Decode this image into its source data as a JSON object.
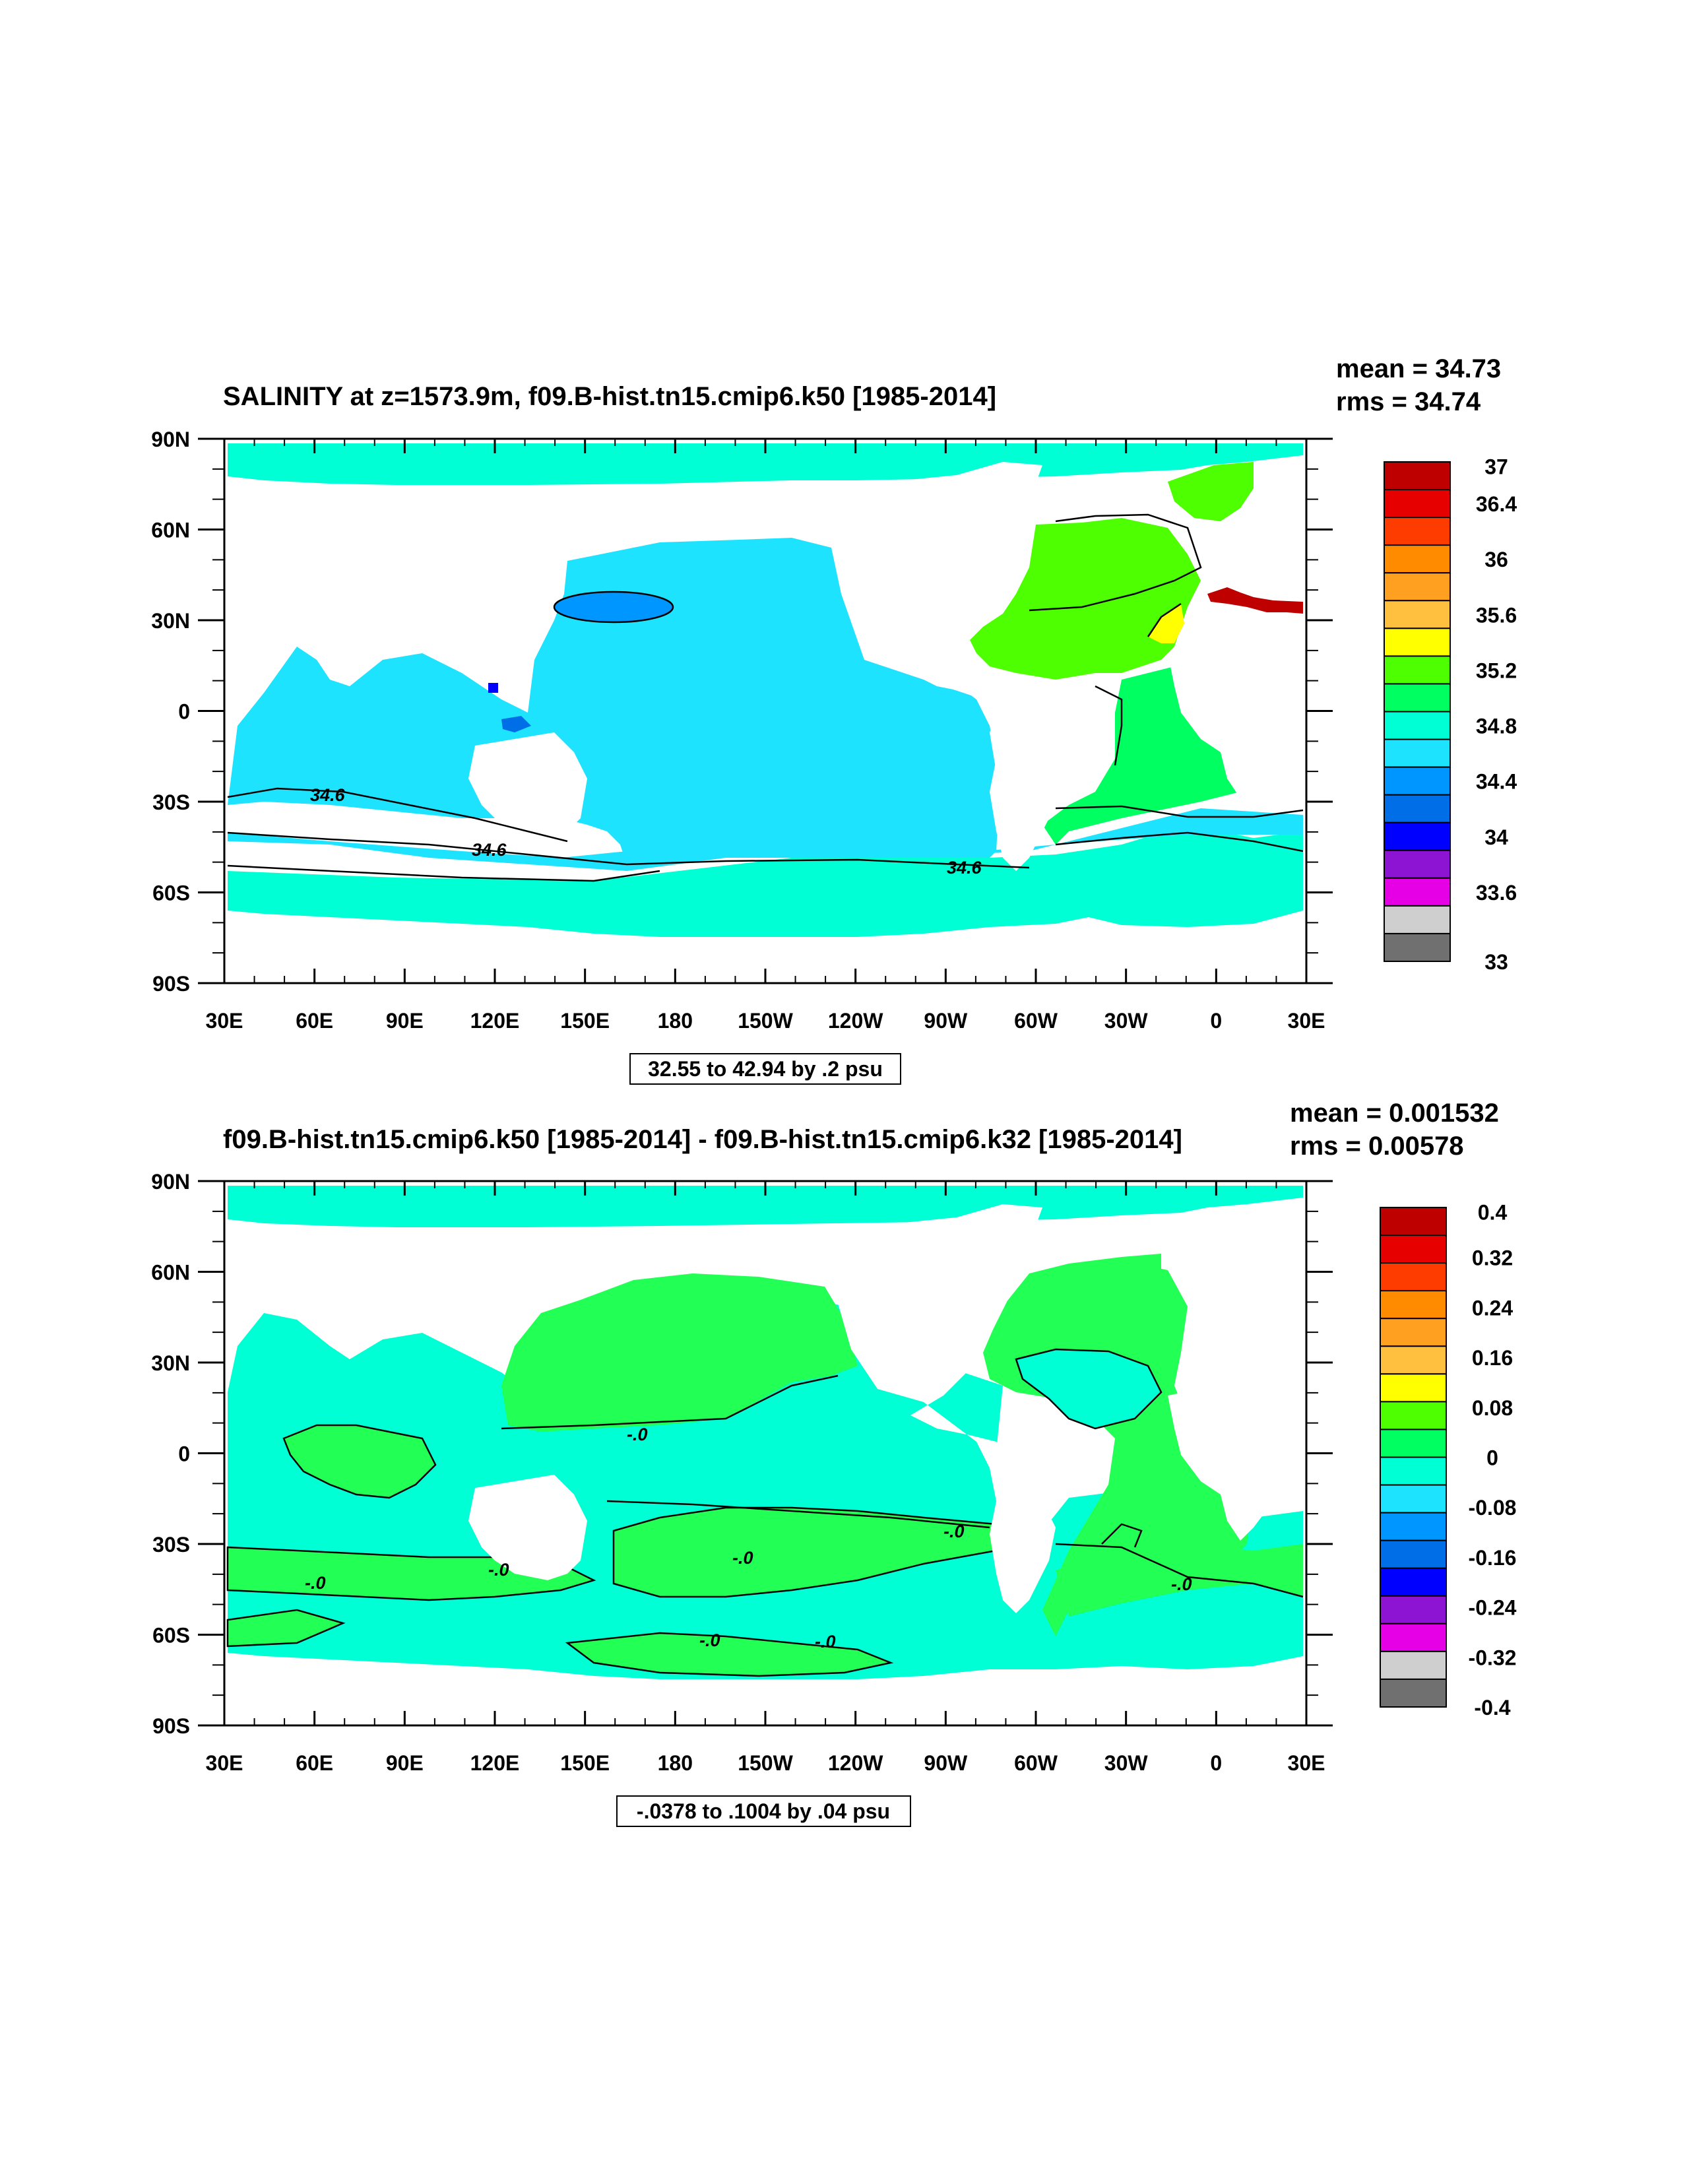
{
  "colors": {
    "ocean_primary_top": "#1ee3ff",
    "ocean_south_top": "#00ffd4",
    "ocean_arctic": "#00ffd4",
    "atlantic_top": "#4dff00",
    "med_top": "#bf0000",
    "ocean_diff_pos": "#22ff55",
    "ocean_diff_neg": "#00ffd4",
    "land": "#ffffff",
    "contour": "#000000"
  },
  "palette": [
    "#707070",
    "#cfcfcf",
    "#e600e6",
    "#8c14d2",
    "#0000ff",
    "#006ee6",
    "#0096ff",
    "#1ee3ff",
    "#00ffd4",
    "#00ff60",
    "#4dff00",
    "#ffff00",
    "#ffc040",
    "#ffa020",
    "#ff8c00",
    "#ff3c00",
    "#e60000",
    "#bf0000"
  ],
  "panels": [
    {
      "id": "top",
      "title": "SALINITY at z=1573.9m, f09.B-hist.tn15.cmip6.k50 [1985-2014]",
      "stats": {
        "mean": "mean = 34.73",
        "rms": "rms = 34.74"
      },
      "info": "32.55 to 42.94 by .2 psu",
      "colorbar_labels": [
        "37",
        "36.4",
        "36",
        "35.6",
        "35.2",
        "34.8",
        "34.4",
        "34",
        "33.6",
        "33"
      ],
      "contour_labels": [
        "34.6",
        "34.6",
        "34.6"
      ]
    },
    {
      "id": "bottom",
      "title": "f09.B-hist.tn15.cmip6.k50 [1985-2014] - f09.B-hist.tn15.cmip6.k32 [1985-2014]",
      "stats": {
        "mean": "mean = 0.001532",
        "rms": "rms = 0.00578"
      },
      "info": "-.0378 to .1004 by .04 psu",
      "colorbar_labels": [
        "0.4",
        "0.32",
        "0.24",
        "0.16",
        "0.08",
        "0",
        "-0.08",
        "-0.16",
        "-0.24",
        "-0.32",
        "-0.4"
      ],
      "contour_labels": [
        "-.0",
        "-.0",
        "-.0",
        "-.0",
        "-.0",
        "-.0",
        "-.0",
        "-.0"
      ]
    }
  ],
  "axes": {
    "x_ticks": [
      "30E",
      "60E",
      "90E",
      "120E",
      "150E",
      "180",
      "150W",
      "120W",
      "90W",
      "60W",
      "30W",
      "0",
      "30E"
    ],
    "y_ticks": [
      "90N",
      "60N",
      "30N",
      "0",
      "30S",
      "60S",
      "90S"
    ]
  }
}
